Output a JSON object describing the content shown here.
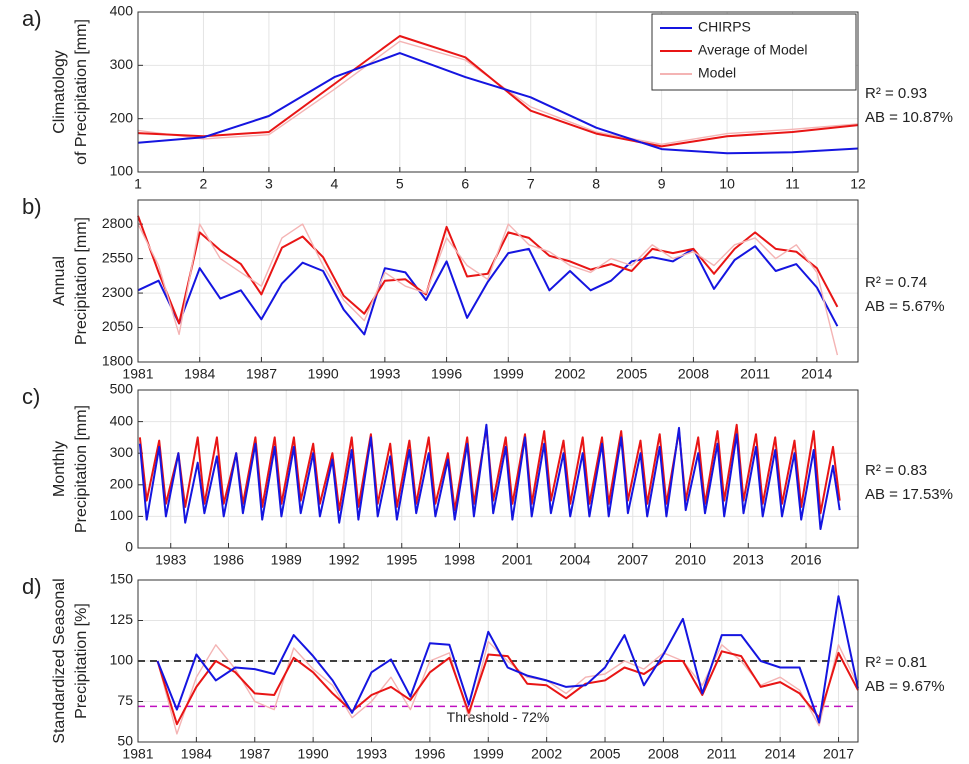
{
  "chart_data": [
    {
      "type": "line",
      "panel_label": "a)",
      "ylabel": [
        "Climatology",
        "of Precipitation [mm]"
      ],
      "annotations": [
        "R² = 0.93",
        "AB = 10.87%"
      ],
      "x": [
        1,
        2,
        3,
        4,
        5,
        6,
        7,
        8,
        9,
        10,
        11,
        12
      ],
      "xlim": [
        1,
        12
      ],
      "xticks": [
        1,
        2,
        3,
        4,
        5,
        6,
        7,
        8,
        9,
        10,
        11,
        12
      ],
      "ylim": [
        100,
        400
      ],
      "yticks": [
        100,
        200,
        300,
        400
      ],
      "grid": true,
      "legend": "upper right",
      "series": [
        {
          "name": "CHIRPS",
          "color": "#1515e0",
          "values": [
            155,
            165,
            205,
            278,
            323,
            278,
            240,
            183,
            143,
            135,
            137,
            144
          ]
        },
        {
          "name": "Average of Model",
          "color": "#e81515",
          "values": [
            173,
            167,
            175,
            265,
            355,
            315,
            215,
            172,
            148,
            167,
            175,
            188
          ]
        },
        {
          "name": "Model",
          "color": "#f4b4b4",
          "values": [
            178,
            162,
            170,
            255,
            345,
            310,
            222,
            175,
            152,
            172,
            180,
            190
          ]
        }
      ]
    },
    {
      "type": "line",
      "panel_label": "b)",
      "ylabel": [
        "Annual",
        "Precipitation [mm]"
      ],
      "annotations": [
        "R² = 0.74",
        "AB = 5.67%"
      ],
      "x": [
        1981,
        1982,
        1983,
        1984,
        1985,
        1986,
        1987,
        1988,
        1989,
        1990,
        1991,
        1992,
        1993,
        1994,
        1995,
        1996,
        1997,
        1998,
        1999,
        2000,
        2001,
        2002,
        2003,
        2004,
        2005,
        2006,
        2007,
        2008,
        2009,
        2010,
        2011,
        2012,
        2013,
        2014,
        2015
      ],
      "xlim": [
        1981,
        2016
      ],
      "xticks": [
        1981,
        1984,
        1987,
        1990,
        1993,
        1996,
        1999,
        2002,
        2005,
        2008,
        2011,
        2014
      ],
      "ylim": [
        1800,
        2975
      ],
      "yticks": [
        1800,
        2050,
        2300,
        2550,
        2800
      ],
      "grid": true,
      "series": [
        {
          "color": "#1515e0",
          "values": [
            2320,
            2390,
            2080,
            2480,
            2260,
            2320,
            2110,
            2370,
            2520,
            2460,
            2180,
            2000,
            2480,
            2450,
            2250,
            2530,
            2120,
            2380,
            2590,
            2620,
            2320,
            2460,
            2320,
            2390,
            2530,
            2560,
            2530,
            2620,
            2330,
            2540,
            2640,
            2460,
            2510,
            2340,
            2060
          ]
        },
        {
          "color": "#e81515",
          "values": [
            2860,
            2450,
            2080,
            2740,
            2610,
            2510,
            2290,
            2630,
            2710,
            2560,
            2280,
            2150,
            2390,
            2400,
            2290,
            2780,
            2420,
            2440,
            2740,
            2700,
            2570,
            2530,
            2470,
            2510,
            2460,
            2620,
            2590,
            2620,
            2440,
            2620,
            2740,
            2620,
            2600,
            2480,
            2200
          ]
        },
        {
          "color": "#f4b4b4",
          "values": [
            2800,
            2500,
            2000,
            2800,
            2550,
            2450,
            2350,
            2700,
            2800,
            2500,
            2250,
            2100,
            2450,
            2350,
            2300,
            2700,
            2500,
            2400,
            2800,
            2650,
            2600,
            2500,
            2450,
            2550,
            2500,
            2650,
            2550,
            2600,
            2500,
            2650,
            2700,
            2550,
            2650,
            2450,
            1850
          ]
        }
      ]
    },
    {
      "type": "line",
      "panel_label": "c)",
      "ylabel": [
        "Monthly",
        "Precipitation [mm]"
      ],
      "annotations": [
        "R² = 0.83",
        "AB = 17.53%"
      ],
      "x": [
        1981.4,
        1981.75,
        1982.4,
        1982.75,
        1983.4,
        1983.75,
        1984.4,
        1984.75,
        1985.4,
        1985.75,
        1986.4,
        1986.75,
        1987.4,
        1987.75,
        1988.4,
        1988.75,
        1989.4,
        1989.75,
        1990.4,
        1990.75,
        1991.4,
        1991.75,
        1992.4,
        1992.75,
        1993.4,
        1993.75,
        1994.4,
        1994.75,
        1995.4,
        1995.75,
        1996.4,
        1996.75,
        1997.4,
        1997.75,
        1998.4,
        1998.75,
        1999.4,
        1999.75,
        2000.4,
        2000.75,
        2001.4,
        2001.75,
        2002.4,
        2002.75,
        2003.4,
        2003.75,
        2004.4,
        2004.75,
        2005.4,
        2005.75,
        2006.4,
        2006.75,
        2007.4,
        2007.75,
        2008.4,
        2008.75,
        2009.4,
        2009.75,
        2010.4,
        2010.75,
        2011.4,
        2011.75,
        2012.4,
        2012.75,
        2013.4,
        2013.75,
        2014.4,
        2014.75,
        2015.4,
        2015.75,
        2016.4,
        2016.75,
        2017.4,
        2017.75
      ],
      "xlim": [
        1981.3,
        2018.7
      ],
      "xticks": [
        1983,
        1986,
        1989,
        1992,
        1995,
        1998,
        2001,
        2004,
        2007,
        2010,
        2013,
        2016
      ],
      "ylim": [
        0,
        500
      ],
      "yticks": [
        0,
        100,
        200,
        300,
        400,
        500
      ],
      "grid": true,
      "series": [
        {
          "color": "#e81515",
          "values": [
            350,
            150,
            340,
            140,
            300,
            130,
            350,
            140,
            350,
            140,
            300,
            140,
            350,
            130,
            350,
            140,
            350,
            150,
            330,
            140,
            300,
            120,
            350,
            130,
            360,
            140,
            330,
            130,
            340,
            140,
            350,
            140,
            300,
            120,
            350,
            140,
            380,
            150,
            350,
            140,
            360,
            140,
            370,
            150,
            340,
            140,
            350,
            140,
            350,
            140,
            370,
            150,
            340,
            140,
            360,
            140,
            370,
            150,
            350,
            140,
            370,
            150,
            390,
            150,
            360,
            140,
            350,
            140,
            340,
            130,
            370,
            110,
            320,
            150
          ]
        },
        {
          "color": "#1515e0",
          "values": [
            330,
            90,
            320,
            100,
            300,
            80,
            270,
            110,
            290,
            100,
            300,
            110,
            330,
            90,
            320,
            100,
            320,
            110,
            300,
            100,
            280,
            80,
            310,
            90,
            350,
            100,
            290,
            90,
            310,
            110,
            300,
            100,
            280,
            90,
            330,
            100,
            390,
            110,
            320,
            90,
            350,
            100,
            330,
            110,
            300,
            100,
            300,
            100,
            330,
            100,
            350,
            110,
            300,
            100,
            320,
            100,
            380,
            120,
            300,
            110,
            330,
            100,
            360,
            110,
            320,
            100,
            310,
            100,
            300,
            90,
            310,
            60,
            260,
            120
          ]
        }
      ]
    },
    {
      "type": "line",
      "panel_label": "d)",
      "ylabel": [
        "Standardized Seasonal",
        "Precipitation [%]"
      ],
      "annotations": [
        "R² = 0.81",
        "AB = 9.67%"
      ],
      "x": [
        1982,
        1983,
        1984,
        1985,
        1986,
        1987,
        1988,
        1989,
        1990,
        1991,
        1992,
        1993,
        1994,
        1995,
        1996,
        1997,
        1998,
        1999,
        2000,
        2001,
        2002,
        2003,
        2004,
        2005,
        2006,
        2007,
        2008,
        2009,
        2010,
        2011,
        2012,
        2013,
        2014,
        2015,
        2016,
        2017,
        2018
      ],
      "xlim": [
        1981,
        2018
      ],
      "xticks": [
        1981,
        1984,
        1987,
        1990,
        1993,
        1996,
        1999,
        2002,
        2005,
        2008,
        2011,
        2014,
        2017
      ],
      "ylim": [
        50,
        150
      ],
      "yticks": [
        50,
        75,
        100,
        125,
        150
      ],
      "grid": true,
      "ref_lines": [
        {
          "value": 100,
          "color": "#000000"
        },
        {
          "value": 72,
          "color": "#c010c0",
          "label": "Threshold - 72%"
        }
      ],
      "series": [
        {
          "color": "#f4b4b4",
          "values": [
            100,
            55,
            90,
            110,
            95,
            75,
            70,
            108,
            95,
            85,
            65,
            75,
            90,
            70,
            100,
            105,
            65,
            112,
            100,
            90,
            88,
            80,
            90,
            92,
            100,
            95,
            105,
            100,
            85,
            110,
            100,
            85,
            90,
            82,
            60,
            110,
            85
          ]
        },
        {
          "color": "#e81515",
          "values": [
            100,
            61,
            84,
            100,
            93,
            80,
            79,
            102,
            93,
            80,
            69,
            79,
            84,
            76,
            93,
            102,
            68,
            104,
            103,
            86,
            85,
            77,
            86,
            88,
            96,
            92,
            100,
            100,
            79,
            106,
            103,
            84,
            87,
            80,
            65,
            105,
            82
          ]
        },
        {
          "color": "#1515e0",
          "values": [
            100,
            70,
            104,
            88,
            96,
            95,
            92,
            116,
            103,
            88,
            68,
            93,
            101,
            78,
            111,
            110,
            73,
            118,
            96,
            91,
            88,
            84,
            85,
            96,
            116,
            85,
            104,
            126,
            80,
            116,
            116,
            100,
            96,
            96,
            62,
            140,
            83
          ]
        }
      ]
    }
  ]
}
